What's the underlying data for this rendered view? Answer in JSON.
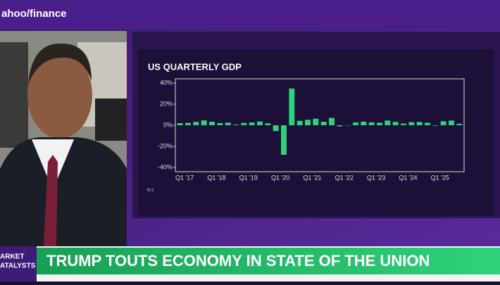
{
  "header": {
    "logo": "ahoo/finance"
  },
  "banner": {
    "tag": [
      "ARKET",
      "ATALYSTS"
    ],
    "headline": "TRUMP TOUTS ECONOMY IN STATE OF THE UNION"
  },
  "chart_data": {
    "type": "bar",
    "title": "US QUARTERLY GDP",
    "source": "BLS",
    "categories": [
      "Q1 '17",
      null,
      null,
      null,
      "Q1 '18",
      null,
      null,
      null,
      "Q1 '19",
      null,
      null,
      null,
      "Q1 '20",
      null,
      null,
      null,
      "Q1 '21",
      null,
      null,
      null,
      "Q1 '22",
      null,
      null,
      null,
      "Q1 '23",
      null,
      null,
      null,
      "Q1 '24",
      null,
      null,
      null,
      "Q1 '25",
      null,
      null,
      null
    ],
    "values": [
      2.0,
      2.3,
      3.2,
      4.6,
      3.3,
      2.1,
      2.5,
      0.6,
      2.2,
      2.7,
      3.6,
      1.8,
      -5.5,
      -28.0,
      34.8,
      4.2,
      5.2,
      6.2,
      3.3,
      7.0,
      -1.0,
      -0.3,
      2.7,
      3.4,
      2.8,
      2.4,
      4.4,
      3.2,
      1.6,
      3.0,
      3.1,
      2.4,
      -0.5,
      3.8,
      4.4,
      1.4
    ],
    "color": "#2fd27a",
    "ylim": [
      -44,
      44
    ],
    "yticks": [
      {
        "value": -40,
        "label": "-40%"
      },
      {
        "value": -20,
        "label": "-20%"
      },
      {
        "value": 0,
        "label": "0%"
      },
      {
        "value": 20,
        "label": "20%"
      },
      {
        "value": 40,
        "label": "40%"
      }
    ]
  }
}
